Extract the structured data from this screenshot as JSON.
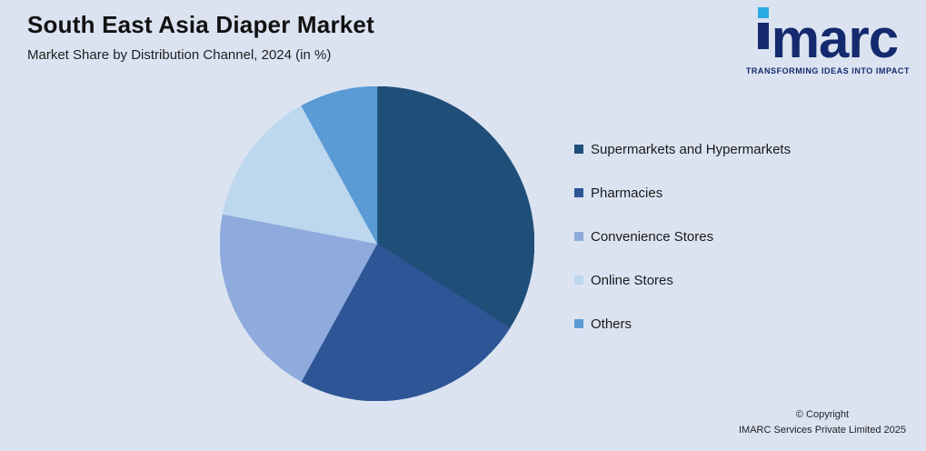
{
  "header": {
    "title": "South East Asia Diaper Market",
    "subtitle": "Market Share by Distribution Channel, 2024 (in %)"
  },
  "logo": {
    "wordmark": "imarc",
    "tagline": "TRANSFORMING IDEAS INTO IMPACT",
    "navy_color": "#152a6e",
    "cyan_color": "#29abe2"
  },
  "chart_data": {
    "type": "pie",
    "title": "South East Asia Diaper Market",
    "subtitle": "Market Share by Distribution Channel, 2024 (in %)",
    "labels": [
      "Supermarkets and Hypermarkets",
      "Pharmacies",
      "Convenience Stores",
      "Online Stores",
      "Others"
    ],
    "values": [
      34,
      24,
      20,
      14,
      8
    ],
    "unit": "%",
    "colors": [
      "#1f4e79",
      "#2e5596",
      "#8faadc",
      "#bdd7ee",
      "#5b9bd5"
    ],
    "start_angle_deg": 0,
    "direction": "clockwise",
    "legend_position": "right",
    "data_labels": false,
    "background_color": "#dbe3f1"
  },
  "footer": {
    "copyright_line1": "© Copyright",
    "copyright_line2": "IMARC Services Private Limited 2025"
  }
}
